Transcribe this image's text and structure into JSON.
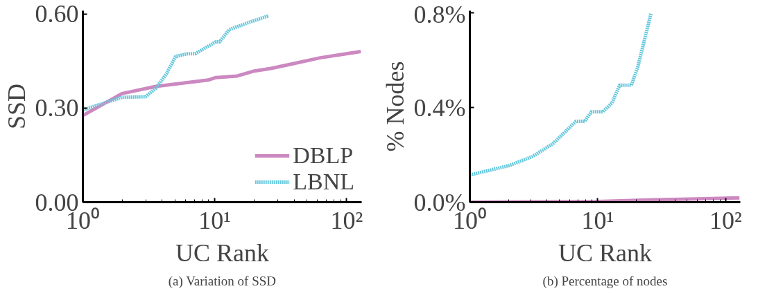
{
  "chart_data": [
    {
      "type": "line",
      "title": "(a) Variation of SSD",
      "xlabel": "UC Rank",
      "ylabel": "SSD",
      "log": "x",
      "xlim": [
        1,
        130
      ],
      "xticks": [
        {
          "value": 1,
          "label": "10⁰"
        },
        {
          "value": 10,
          "label": "10¹"
        },
        {
          "value": 100,
          "label": "10²"
        }
      ],
      "ylim": [
        0,
        0.61
      ],
      "yticks": [
        {
          "value": 0,
          "label": "0.00"
        },
        {
          "value": 0.3,
          "label": "0.30"
        },
        {
          "value": 0.6,
          "label": "0.60"
        }
      ],
      "grid": false,
      "legend": "bottom right",
      "series": [
        {
          "name": "DBLP",
          "color": "#cc88c0",
          "line_style": "solid",
          "x": [
            1,
            1.98,
            3.58,
            5.2,
            8.9,
            10.2,
            14.8,
            20,
            26.7,
            38,
            63,
            128
          ],
          "values": [
            0.276,
            0.346,
            0.369,
            0.377,
            0.389,
            0.397,
            0.402,
            0.418,
            0.426,
            0.44,
            0.46,
            0.48
          ]
        },
        {
          "name": "LBNL",
          "color": "#66c8dc",
          "line_style": "dotted",
          "x": [
            1,
            1.98,
            2.99,
            3.58,
            4.3,
            5.05,
            6.2,
            7.1,
            10.2,
            10.9,
            12.9,
            18.5,
            25.7
          ],
          "values": [
            0.294,
            0.334,
            0.336,
            0.363,
            0.409,
            0.464,
            0.473,
            0.473,
            0.511,
            0.511,
            0.55,
            0.574,
            0.594
          ]
        }
      ]
    },
    {
      "type": "line",
      "title": "(b) Percentage of nodes",
      "xlabel": "UC Rank",
      "ylabel": "% Nodes",
      "log": "x",
      "xlim": [
        1,
        130
      ],
      "xticks": [
        {
          "value": 1,
          "label": "10⁰"
        },
        {
          "value": 10,
          "label": "10¹"
        },
        {
          "value": 100,
          "label": "10²"
        }
      ],
      "ylim": [
        0,
        0.81
      ],
      "yticks": [
        {
          "value": 0,
          "label": "0.0%"
        },
        {
          "value": 0.4,
          "label": "0.4%"
        },
        {
          "value": 0.8,
          "label": "0.8%"
        }
      ],
      "grid": false,
      "legend": false,
      "series": [
        {
          "color": "#cc88c0",
          "line_style": "solid",
          "x": [
            1,
            10,
            28,
            128
          ],
          "values": [
            0.0,
            0.003,
            0.01,
            0.018
          ]
        },
        {
          "color": "#66c8dc",
          "line_style": "dotted",
          "x": [
            1,
            2.03,
            3.08,
            4.45,
            6.75,
            7.9,
            8.9,
            10.9,
            12.9,
            14.8,
            18.3,
            20.5,
            23.5,
            26.1
          ],
          "values": [
            0.115,
            0.155,
            0.193,
            0.247,
            0.342,
            0.342,
            0.382,
            0.382,
            0.419,
            0.495,
            0.495,
            0.57,
            0.7,
            0.8
          ]
        }
      ]
    }
  ]
}
